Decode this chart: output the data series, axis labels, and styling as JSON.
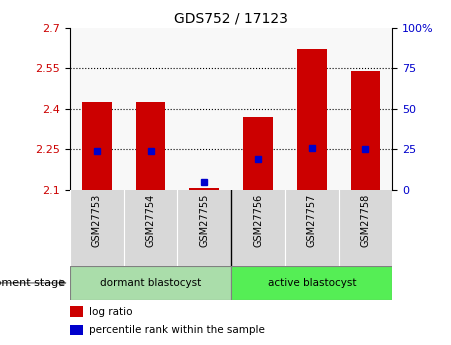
{
  "title": "GDS752 / 17123",
  "samples": [
    "GSM27753",
    "GSM27754",
    "GSM27755",
    "GSM27756",
    "GSM27757",
    "GSM27758"
  ],
  "bar_bottom": 2.1,
  "bar_tops": [
    2.425,
    2.425,
    2.107,
    2.37,
    2.62,
    2.54
  ],
  "percentile_ranks": [
    24,
    24,
    5,
    19,
    26,
    25
  ],
  "ylim_left": [
    2.1,
    2.7
  ],
  "ylim_right": [
    0,
    100
  ],
  "yticks_left": [
    2.1,
    2.25,
    2.4,
    2.55,
    2.7
  ],
  "yticks_right": [
    0,
    25,
    50,
    75,
    100
  ],
  "ytick_labels_left": [
    "2.1",
    "2.25",
    "2.4",
    "2.55",
    "2.7"
  ],
  "ytick_labels_right": [
    "0",
    "25",
    "50",
    "75",
    "100%"
  ],
  "bar_color": "#cc0000",
  "blue_color": "#0000cc",
  "grid_color": "#000000",
  "groups": [
    {
      "label": "dormant blastocyst",
      "indices": [
        0,
        1,
        2
      ],
      "color": "#aaddaa"
    },
    {
      "label": "active blastocyst",
      "indices": [
        3,
        4,
        5
      ],
      "color": "#55ee55"
    }
  ],
  "group_label": "development stage",
  "legend_log_ratio": "log ratio",
  "legend_percentile": "percentile rank within the sample",
  "bar_width": 0.55,
  "left_tick_color": "#cc0000",
  "right_tick_color": "#0000cc",
  "ax_facecolor": "#f8f8f8",
  "xtick_bg": "#d8d8d8"
}
